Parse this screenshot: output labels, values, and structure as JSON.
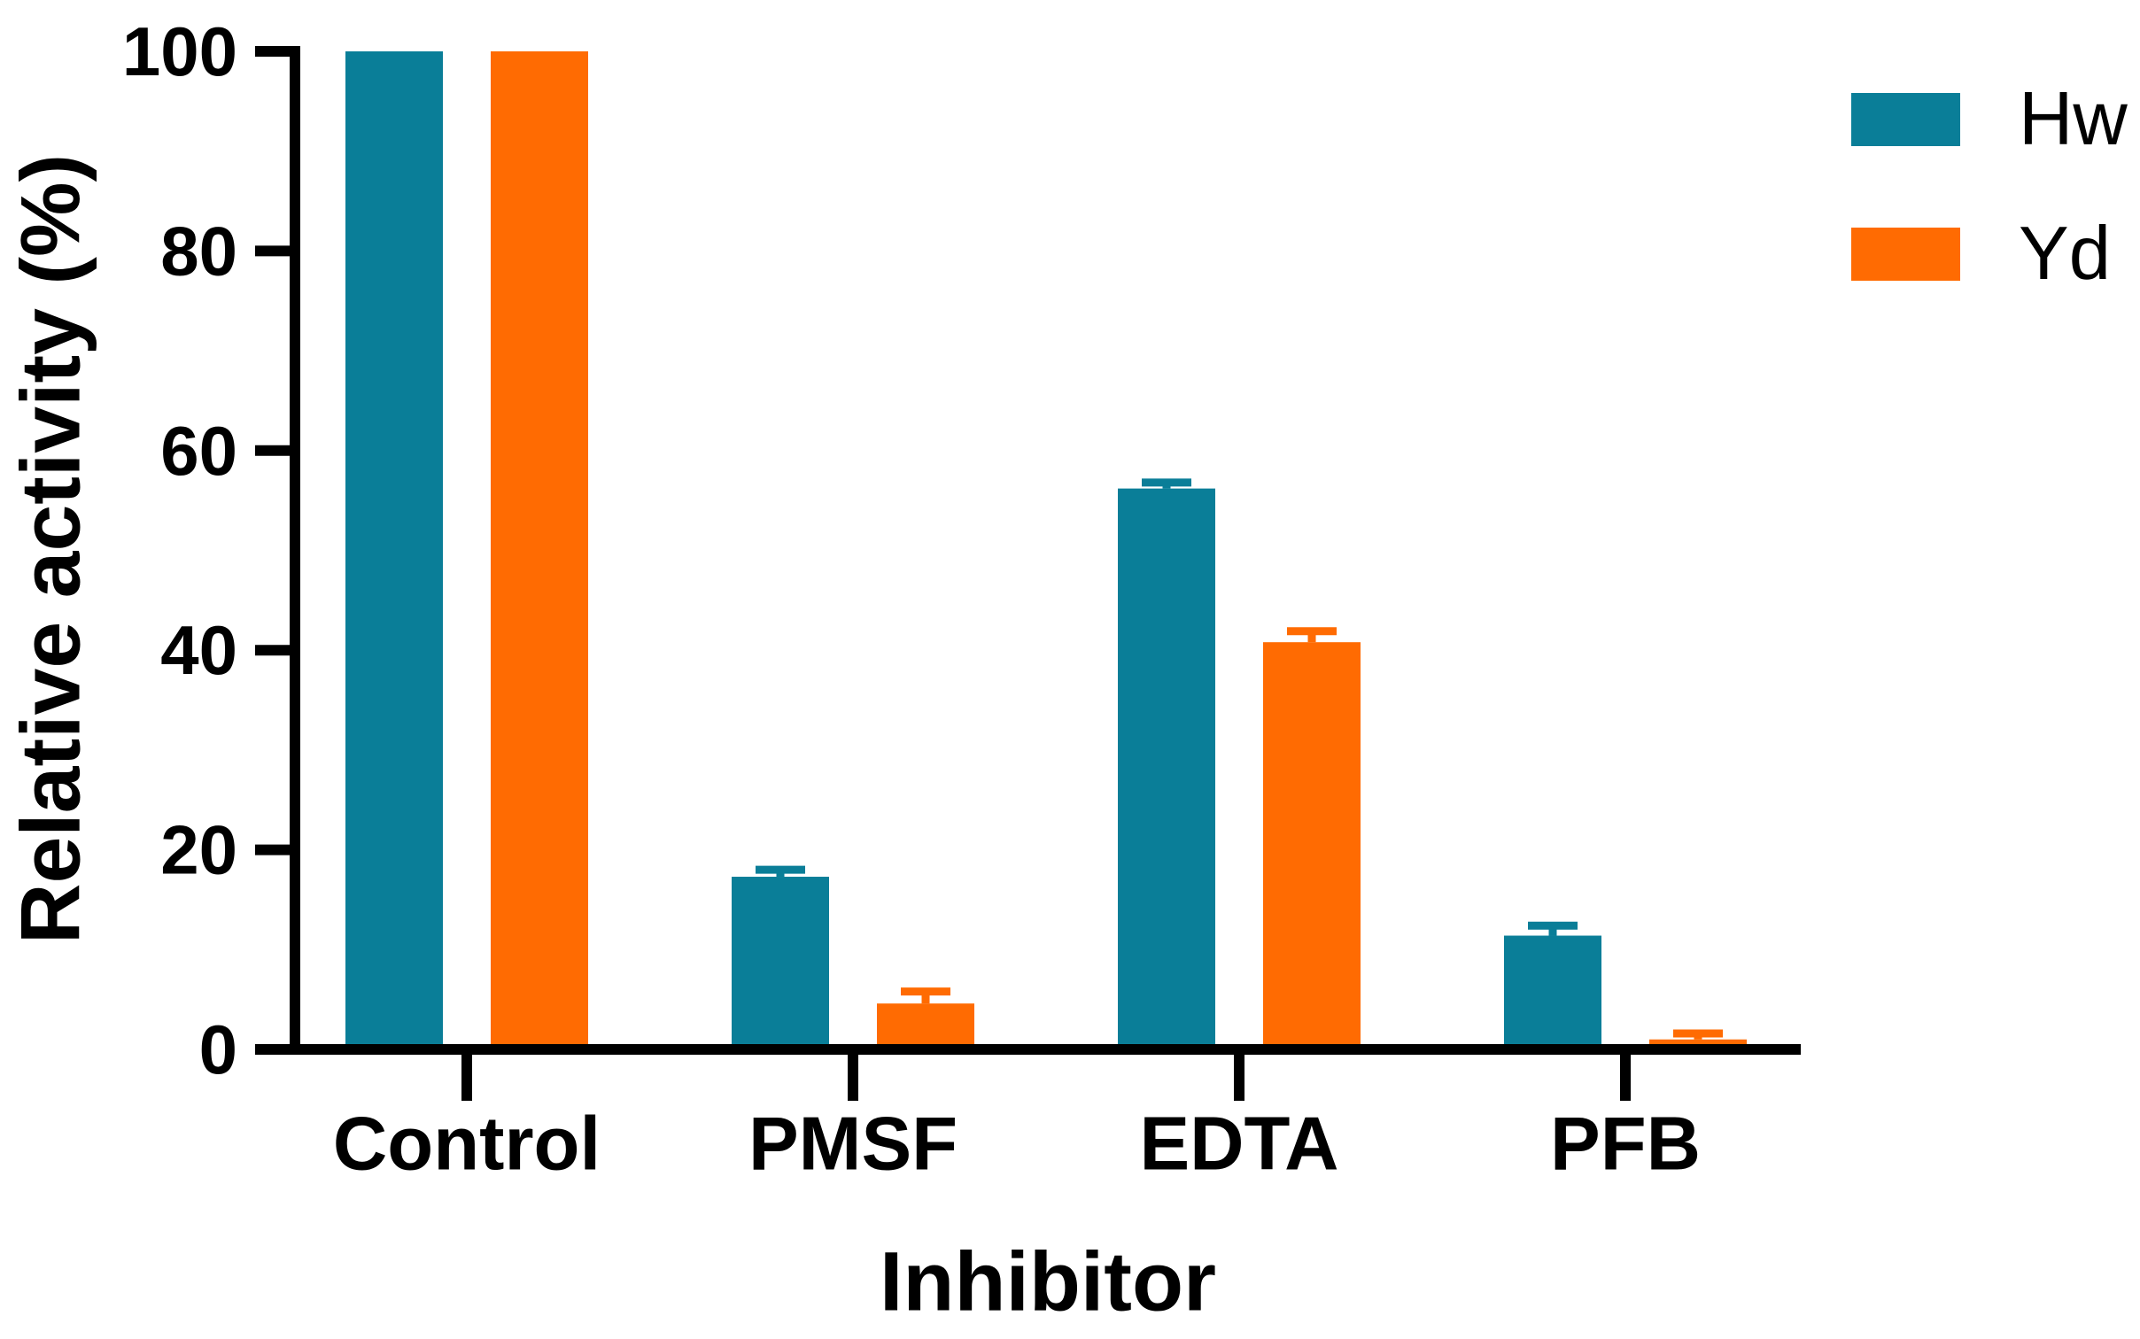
{
  "chart_data": {
    "type": "bar",
    "title": "",
    "xlabel": "Inhibitor",
    "ylabel": "Relative activity (%)",
    "categories": [
      "Control",
      "PMSF",
      "EDTA",
      "PFB"
    ],
    "series": [
      {
        "name": "Hw",
        "color": "#0A7E98",
        "values": [
          100,
          17.3,
          56.2,
          11.4
        ],
        "errors": [
          0,
          0.7,
          0.6,
          1.0
        ]
      },
      {
        "name": "Yd",
        "color": "#FF6B02",
        "values": [
          100,
          4.6,
          40.8,
          1.0
        ],
        "errors": [
          0,
          1.2,
          1.1,
          0.6
        ]
      }
    ],
    "ylim": [
      0,
      100
    ],
    "yticks": [
      0,
      20,
      40,
      60,
      80,
      100
    ],
    "grid": false,
    "legend_position": "top-right",
    "error_bar_style": "upper-only, capped, colored per series",
    "axis_color": "#000000",
    "background_color": "#ffffff"
  }
}
